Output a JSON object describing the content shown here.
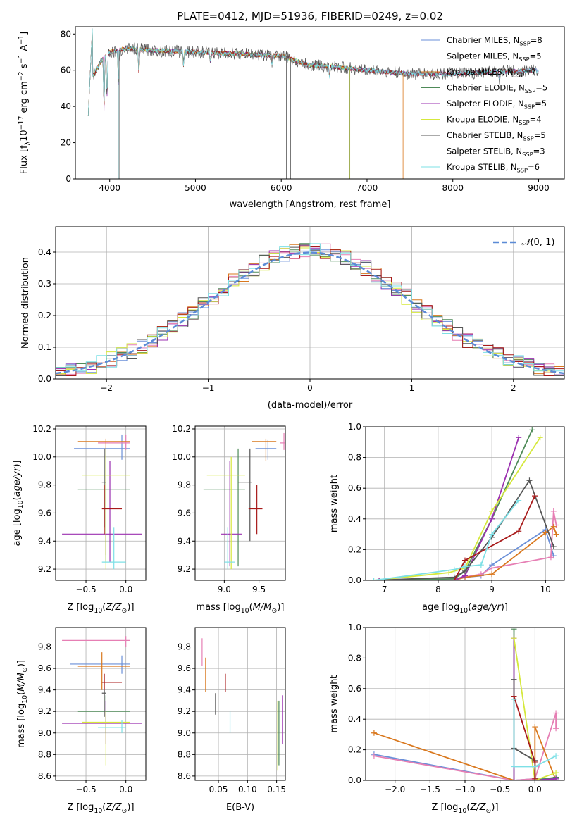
{
  "chart_data": [
    {
      "type": "line",
      "title": "PLATE=0412, MJD=51936, FIBERID=0249, z=0.02",
      "xlabel": "wavelength [Angstrom, rest frame]",
      "ylabel": "Flux [f_λ10^-17 erg cm^-2 s^-1 A^-1]",
      "xlim": [
        3600,
        9300
      ],
      "ylim": [
        0,
        84
      ],
      "xticks": [
        4000,
        5000,
        6000,
        7000,
        8000,
        9000
      ],
      "yticks": [
        0,
        20,
        40,
        60,
        80
      ],
      "grid": false,
      "legend_position": "top-right",
      "series": [
        {
          "name": "Chabrier MILES, N_SSP=8",
          "color": "#6a8fd8"
        },
        {
          "name": "Salpeter MILES, N_SSP=5",
          "color": "#e67fb4"
        },
        {
          "name": "Kroupa MILES, N_SSP=7",
          "color": "#d9781e"
        },
        {
          "name": "Chabrier ELODIE, N_SSP=5",
          "color": "#4e8a58"
        },
        {
          "name": "Salpeter ELODIE, N_SSP=5",
          "color": "#9b30b0"
        },
        {
          "name": "Kroupa ELODIE, N_SSP=4",
          "color": "#d5e83c"
        },
        {
          "name": "Chabrier STELIB, N_SSP=5",
          "color": "#555555"
        },
        {
          "name": "Salpeter STELIB, N_SSP=3",
          "color": "#a81a1a"
        },
        {
          "name": "Kroupa STELIB, N_SSP=6",
          "color": "#7de0e6"
        }
      ],
      "continuum": {
        "x": [
          3750,
          3900,
          4000,
          4200,
          4500,
          5000,
          5500,
          6000,
          6300,
          6600,
          7000,
          7500,
          8000,
          8500,
          9000
        ],
        "y": [
          52,
          65,
          70,
          72,
          71,
          70,
          69,
          68,
          63,
          62,
          60,
          58,
          58,
          59,
          60
        ]
      }
    },
    {
      "type": "line",
      "xlabel": "(data-model)/error",
      "ylabel": "Normed distribution",
      "xlim": [
        -2.5,
        2.5
      ],
      "ylim": [
        0,
        0.48
      ],
      "xticks": [
        -2,
        -1,
        0,
        1,
        2
      ],
      "yticks": [
        0.0,
        0.1,
        0.2,
        0.3,
        0.4
      ],
      "grid": true,
      "legend_position": "top-right",
      "legend_label": "N(0,1)",
      "curve": "normal pdf mean 0 sd 1",
      "histogram": {
        "bin_width": 0.1,
        "range": [
          -2.5,
          2.5
        ],
        "note_peak": 0.46
      }
    },
    {
      "type": "scatter",
      "xlabel": "Z [log10(Z/Z⊙)]",
      "ylabel": "age  [log10(age/yr)]",
      "xlim": [
        -0.88,
        0.25
      ],
      "ylim": [
        9.12,
        10.22
      ],
      "xticks": [
        -0.5,
        0.0
      ],
      "yticks": [
        9.2,
        9.4,
        9.6,
        9.8,
        10.0,
        10.2
      ],
      "grid": true,
      "points": [
        {
          "x": -0.05,
          "y": 10.06,
          "xlo": -0.65,
          "xhi": 0.05,
          "ylo": 9.98,
          "yhi": 10.16,
          "color": "#6a8fd8"
        },
        {
          "x": 0.0,
          "y": 10.1,
          "xlo": -0.35,
          "xhi": 0.05,
          "ylo": 10.05,
          "yhi": 10.16,
          "color": "#e67fb4"
        },
        {
          "x": -0.25,
          "y": 10.11,
          "xlo": -0.6,
          "xhi": 0.05,
          "ylo": 9.3,
          "yhi": 10.13,
          "color": "#d9781e"
        },
        {
          "x": -0.25,
          "y": 9.77,
          "xlo": -0.6,
          "xhi": 0.05,
          "ylo": 9.25,
          "yhi": 10.06,
          "color": "#4e8a58"
        },
        {
          "x": -0.2,
          "y": 9.45,
          "xlo": -0.8,
          "xhi": 0.2,
          "ylo": 9.25,
          "yhi": 9.97,
          "color": "#9b30b0"
        },
        {
          "x": -0.25,
          "y": 9.87,
          "xlo": -0.55,
          "xhi": 0.05,
          "ylo": 9.2,
          "yhi": 10.01,
          "color": "#d5e83c"
        },
        {
          "x": -0.27,
          "y": 9.82,
          "xlo": -0.3,
          "xhi": -0.25,
          "ylo": 9.5,
          "yhi": 10.06,
          "color": "#555555"
        },
        {
          "x": -0.27,
          "y": 9.63,
          "xlo": -0.3,
          "xhi": -0.05,
          "ylo": 9.45,
          "yhi": 9.8,
          "color": "#a81a1a"
        },
        {
          "x": -0.15,
          "y": 9.25,
          "xlo": -0.3,
          "xhi": 0.0,
          "ylo": 9.2,
          "yhi": 9.5,
          "color": "#7de0e6"
        }
      ]
    },
    {
      "type": "scatter",
      "xlabel": "mass [log10(M/M⊙)]",
      "ylabel": "",
      "xlim": [
        8.58,
        9.88
      ],
      "ylim": [
        9.12,
        10.22
      ],
      "xticks": [
        9.0,
        9.5
      ],
      "yticks": [
        9.2,
        9.4,
        9.6,
        9.8,
        10.0,
        10.2
      ],
      "grid": true,
      "points": [
        {
          "x": 9.63,
          "y": 10.06,
          "xlo": 9.45,
          "xhi": 9.75,
          "ylo": 9.98,
          "yhi": 10.12,
          "color": "#6a8fd8"
        },
        {
          "x": 9.86,
          "y": 10.1,
          "xlo": 9.8,
          "xhi": 9.9,
          "ylo": 10.05,
          "yhi": 10.17,
          "color": "#e67fb4"
        },
        {
          "x": 9.6,
          "y": 10.11,
          "xlo": 9.4,
          "xhi": 9.75,
          "ylo": 9.97,
          "yhi": 10.13,
          "color": "#d9781e"
        },
        {
          "x": 9.2,
          "y": 9.77,
          "xlo": 8.7,
          "xhi": 9.3,
          "ylo": 9.22,
          "yhi": 10.06,
          "color": "#4e8a58"
        },
        {
          "x": 9.08,
          "y": 9.45,
          "xlo": 8.95,
          "xhi": 9.25,
          "ylo": 9.22,
          "yhi": 9.97,
          "color": "#9b30b0"
        },
        {
          "x": 9.1,
          "y": 9.87,
          "xlo": 8.75,
          "xhi": 9.3,
          "ylo": 9.2,
          "yhi": 10.0,
          "color": "#d5e83c"
        },
        {
          "x": 9.37,
          "y": 9.82,
          "xlo": 9.2,
          "xhi": 9.4,
          "ylo": 9.4,
          "yhi": 10.06,
          "color": "#555555"
        },
        {
          "x": 9.47,
          "y": 9.63,
          "xlo": 9.35,
          "xhi": 9.55,
          "ylo": 9.45,
          "yhi": 9.8,
          "color": "#a81a1a"
        },
        {
          "x": 9.05,
          "y": 9.25,
          "xlo": 9.0,
          "xhi": 9.15,
          "ylo": 9.2,
          "yhi": 9.5,
          "color": "#7de0e6"
        }
      ]
    },
    {
      "type": "line",
      "xlabel": "age  [log10(age/yr)]",
      "ylabel": "mass weight",
      "xlim": [
        6.65,
        10.35
      ],
      "ylim": [
        0,
        1.0
      ],
      "xticks": [
        7,
        8,
        9,
        10
      ],
      "yticks": [
        0.0,
        0.2,
        0.4,
        0.6,
        0.8,
        1.0
      ],
      "grid": true,
      "series": [
        {
          "color": "#6a8fd8",
          "x": [
            6.8,
            8.3,
            8.5,
            8.8,
            9.0,
            10.0,
            10.15
          ],
          "y": [
            0.0,
            0.01,
            0.02,
            0.03,
            0.1,
            0.33,
            0.16
          ]
        },
        {
          "color": "#e67fb4",
          "x": [
            6.8,
            8.3,
            8.8,
            9.0,
            10.1,
            10.15,
            10.2
          ],
          "y": [
            0.0,
            0.01,
            0.04,
            0.08,
            0.15,
            0.45,
            0.36
          ]
        },
        {
          "color": "#d9781e",
          "x": [
            6.9,
            8.3,
            8.5,
            9.0,
            10.0,
            10.15,
            10.2
          ],
          "y": [
            0.0,
            0.0,
            0.02,
            0.04,
            0.31,
            0.35,
            0.3
          ]
        },
        {
          "color": "#4e8a58",
          "x": [
            6.9,
            8.3,
            8.5,
            9.0,
            9.75
          ],
          "y": [
            0.0,
            0.01,
            0.06,
            0.4,
            0.98
          ]
        },
        {
          "color": "#9b30b0",
          "x": [
            6.9,
            8.3,
            8.5,
            9.0,
            9.5
          ],
          "y": [
            0.0,
            0.0,
            0.03,
            0.4,
            0.93
          ]
        },
        {
          "color": "#d5e83c",
          "x": [
            6.8,
            8.2,
            8.5,
            9.0,
            9.9
          ],
          "y": [
            0.0,
            0.05,
            0.08,
            0.45,
            0.93
          ]
        },
        {
          "color": "#555555",
          "x": [
            6.8,
            8.3,
            8.5,
            9.0,
            9.7,
            10.15
          ],
          "y": [
            0.0,
            0.02,
            0.06,
            0.28,
            0.65,
            0.22
          ]
        },
        {
          "color": "#a81a1a",
          "x": [
            8.3,
            8.5,
            9.5,
            9.8
          ],
          "y": [
            0.0,
            0.13,
            0.32,
            0.55
          ]
        },
        {
          "color": "#7de0e6",
          "x": [
            6.8,
            8.3,
            8.5,
            8.8,
            9.0,
            9.5
          ],
          "y": [
            0.0,
            0.07,
            0.09,
            0.1,
            0.3,
            0.52
          ]
        }
      ]
    },
    {
      "type": "scatter",
      "xlabel": "Z [log10(Z/Z⊙)]",
      "ylabel": "mass [log10(M/M⊙)]",
      "xlim": [
        -0.88,
        0.25
      ],
      "ylim": [
        8.56,
        9.98
      ],
      "xticks": [
        -0.5,
        0.0
      ],
      "yticks": [
        8.6,
        8.8,
        9.0,
        9.2,
        9.4,
        9.6,
        9.8
      ],
      "grid": true,
      "points": [
        {
          "x": -0.05,
          "y": 9.64,
          "xlo": -0.7,
          "xhi": 0.05,
          "ylo": 9.55,
          "yhi": 9.72,
          "color": "#6a8fd8"
        },
        {
          "x": 0.0,
          "y": 9.86,
          "xlo": -0.8,
          "xhi": 0.05,
          "ylo": 9.8,
          "yhi": 9.9,
          "color": "#e67fb4"
        },
        {
          "x": -0.3,
          "y": 9.62,
          "xlo": -0.6,
          "xhi": 0.05,
          "ylo": 9.4,
          "yhi": 9.75,
          "color": "#d9781e"
        },
        {
          "x": -0.25,
          "y": 9.2,
          "xlo": -0.6,
          "xhi": 0.05,
          "ylo": 9.0,
          "yhi": 9.35,
          "color": "#4e8a58"
        },
        {
          "x": -0.25,
          "y": 9.09,
          "xlo": -0.8,
          "xhi": 0.2,
          "ylo": 8.9,
          "yhi": 9.3,
          "color": "#9b30b0"
        },
        {
          "x": -0.25,
          "y": 9.1,
          "xlo": -0.55,
          "xhi": 0.05,
          "ylo": 8.7,
          "yhi": 9.2,
          "color": "#d5e83c"
        },
        {
          "x": -0.27,
          "y": 9.37,
          "xlo": -0.3,
          "xhi": -0.25,
          "ylo": 9.15,
          "yhi": 9.4,
          "color": "#555555"
        },
        {
          "x": -0.27,
          "y": 9.47,
          "xlo": -0.3,
          "xhi": -0.05,
          "ylo": 9.4,
          "yhi": 9.55,
          "color": "#a81a1a"
        },
        {
          "x": -0.05,
          "y": 9.05,
          "xlo": -0.35,
          "xhi": 0.0,
          "ylo": 9.0,
          "yhi": 9.12,
          "color": "#7de0e6"
        }
      ]
    },
    {
      "type": "scatter",
      "xlabel": "E(B-V)",
      "ylabel": "",
      "xlim": [
        0.01,
        0.165
      ],
      "ylim": [
        8.56,
        9.98
      ],
      "xticks": [
        0.05,
        0.1,
        0.15
      ],
      "yticks": [
        8.6,
        8.8,
        9.0,
        9.2,
        9.4,
        9.6,
        9.8
      ],
      "grid": true,
      "points": [
        {
          "x": 0.022,
          "ylo": 9.62,
          "yhi": 9.88,
          "color": "#e67fb4"
        },
        {
          "x": 0.028,
          "ylo": 9.38,
          "yhi": 9.7,
          "color": "#d9781e"
        },
        {
          "x": 0.045,
          "ylo": 9.17,
          "yhi": 9.37,
          "color": "#555555"
        },
        {
          "x": 0.062,
          "ylo": 9.38,
          "yhi": 9.55,
          "color": "#a81a1a"
        },
        {
          "x": 0.07,
          "ylo": 9.0,
          "yhi": 9.2,
          "color": "#7de0e6"
        },
        {
          "x": 0.152,
          "ylo": 8.65,
          "yhi": 9.3,
          "color": "#d5e83c"
        },
        {
          "x": 0.154,
          "ylo": 8.7,
          "yhi": 9.3,
          "color": "#4e8a58"
        },
        {
          "x": 0.16,
          "ylo": 8.9,
          "yhi": 9.35,
          "color": "#9b30b0"
        }
      ]
    },
    {
      "type": "line",
      "xlabel": "Z [log10(Z/Z⊙)]",
      "ylabel": "mass weight",
      "xlim": [
        -2.42,
        0.42
      ],
      "ylim": [
        0,
        1.0
      ],
      "xticks": [
        -2.0,
        -1.5,
        -1.0,
        -0.5,
        0.0
      ],
      "yticks": [
        0.0,
        0.2,
        0.4,
        0.6,
        0.8,
        1.0
      ],
      "grid": true,
      "series": [
        {
          "color": "#6a8fd8",
          "x": [
            -2.3,
            -0.3,
            0.0,
            0.3
          ],
          "y": [
            0.17,
            0.0,
            0.01,
            0.01
          ]
        },
        {
          "color": "#e67fb4",
          "x": [
            -2.3,
            -0.3,
            0.0,
            0.3,
            0.3
          ],
          "y": [
            0.16,
            0.0,
            0.01,
            0.44,
            0.34
          ]
        },
        {
          "color": "#d9781e",
          "x": [
            -2.3,
            -0.3,
            0.0,
            0.0,
            0.3
          ],
          "y": [
            0.31,
            0.0,
            0.0,
            0.35,
            0.0
          ]
        },
        {
          "color": "#4e8a58",
          "x": [
            -0.3,
            -0.3,
            0.0,
            0.3
          ],
          "y": [
            0.99,
            0.0,
            0.0,
            0.02
          ]
        },
        {
          "color": "#9b30b0",
          "x": [
            -0.3,
            -0.3,
            0.0,
            0.3
          ],
          "y": [
            0.93,
            0.0,
            0.0,
            0.01
          ]
        },
        {
          "color": "#d5e83c",
          "x": [
            -0.3,
            0.0,
            0.3
          ],
          "y": [
            0.93,
            0.0,
            0.05
          ]
        },
        {
          "color": "#555555",
          "x": [
            -0.3,
            -0.3,
            0.0,
            0.0
          ],
          "y": [
            0.66,
            0.21,
            0.13,
            0.0
          ]
        },
        {
          "color": "#a81a1a",
          "x": [
            -0.3,
            0.0,
            0.0
          ],
          "y": [
            0.55,
            0.12,
            0.01
          ]
        },
        {
          "color": "#7de0e6",
          "x": [
            -0.3,
            -0.3,
            0.0,
            0.3
          ],
          "y": [
            0.53,
            0.09,
            0.09,
            0.16
          ]
        }
      ]
    }
  ]
}
